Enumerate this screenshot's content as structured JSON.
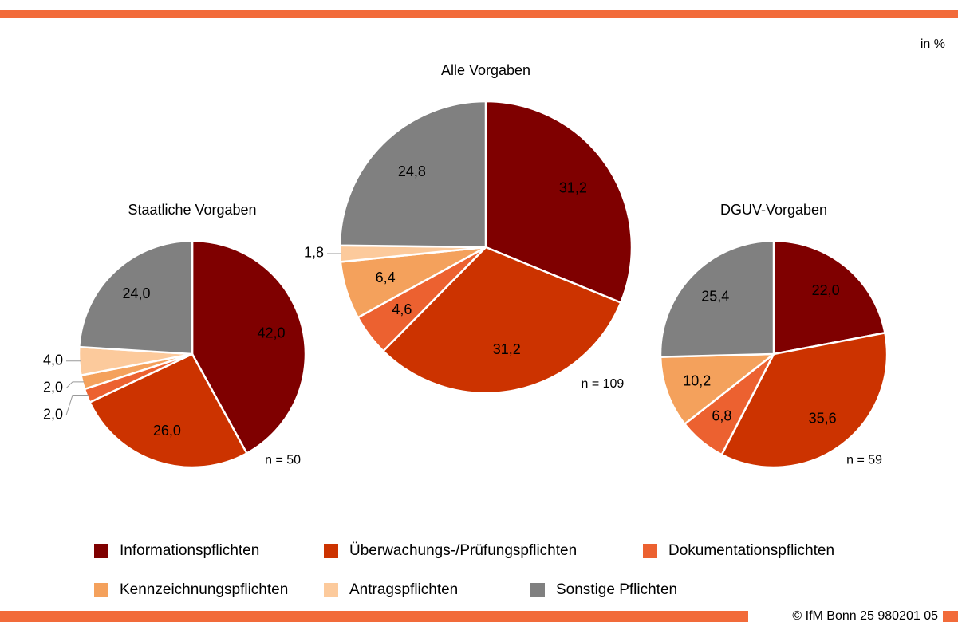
{
  "unit": "in %",
  "source": "© IfM Bonn 25 980201 05",
  "legend": {
    "labels": [
      "Informationspflichten",
      "Überwachungs-/Prüfungspflichten",
      "Dokumentationspflichten",
      "Kennzeichnungspflichten",
      "Antragspflichten",
      "Sonstige Pflichten"
    ],
    "colors": [
      "#7f0000",
      "#cc3300",
      "#ec6130",
      "#f4a15c",
      "#fcca9c",
      "#808080"
    ]
  },
  "chart_data": [
    {
      "type": "pie",
      "title": "Staatliche Vorgaben",
      "note": "n = 50",
      "values": [
        42.0,
        26.0,
        2.0,
        2.0,
        4.0,
        24.0
      ],
      "value_labels": [
        "42,0",
        "26,0",
        "2,0",
        "2,0",
        "4,0",
        "24,0"
      ]
    },
    {
      "type": "pie",
      "title": "Alle Vorgaben",
      "note": "n = 109",
      "values": [
        31.2,
        31.2,
        4.6,
        6.4,
        1.8,
        24.8
      ],
      "value_labels": [
        "31,2",
        "31,2",
        "4,6",
        "6,4",
        "1,8",
        "24,8"
      ]
    },
    {
      "type": "pie",
      "title": "DGUV-Vorgaben",
      "note": "n = 59",
      "values": [
        22.0,
        35.6,
        6.8,
        10.2,
        0,
        25.4
      ],
      "value_labels": [
        "22,0",
        "35,6",
        "6,8",
        "10,2",
        null,
        "25,4"
      ]
    }
  ]
}
